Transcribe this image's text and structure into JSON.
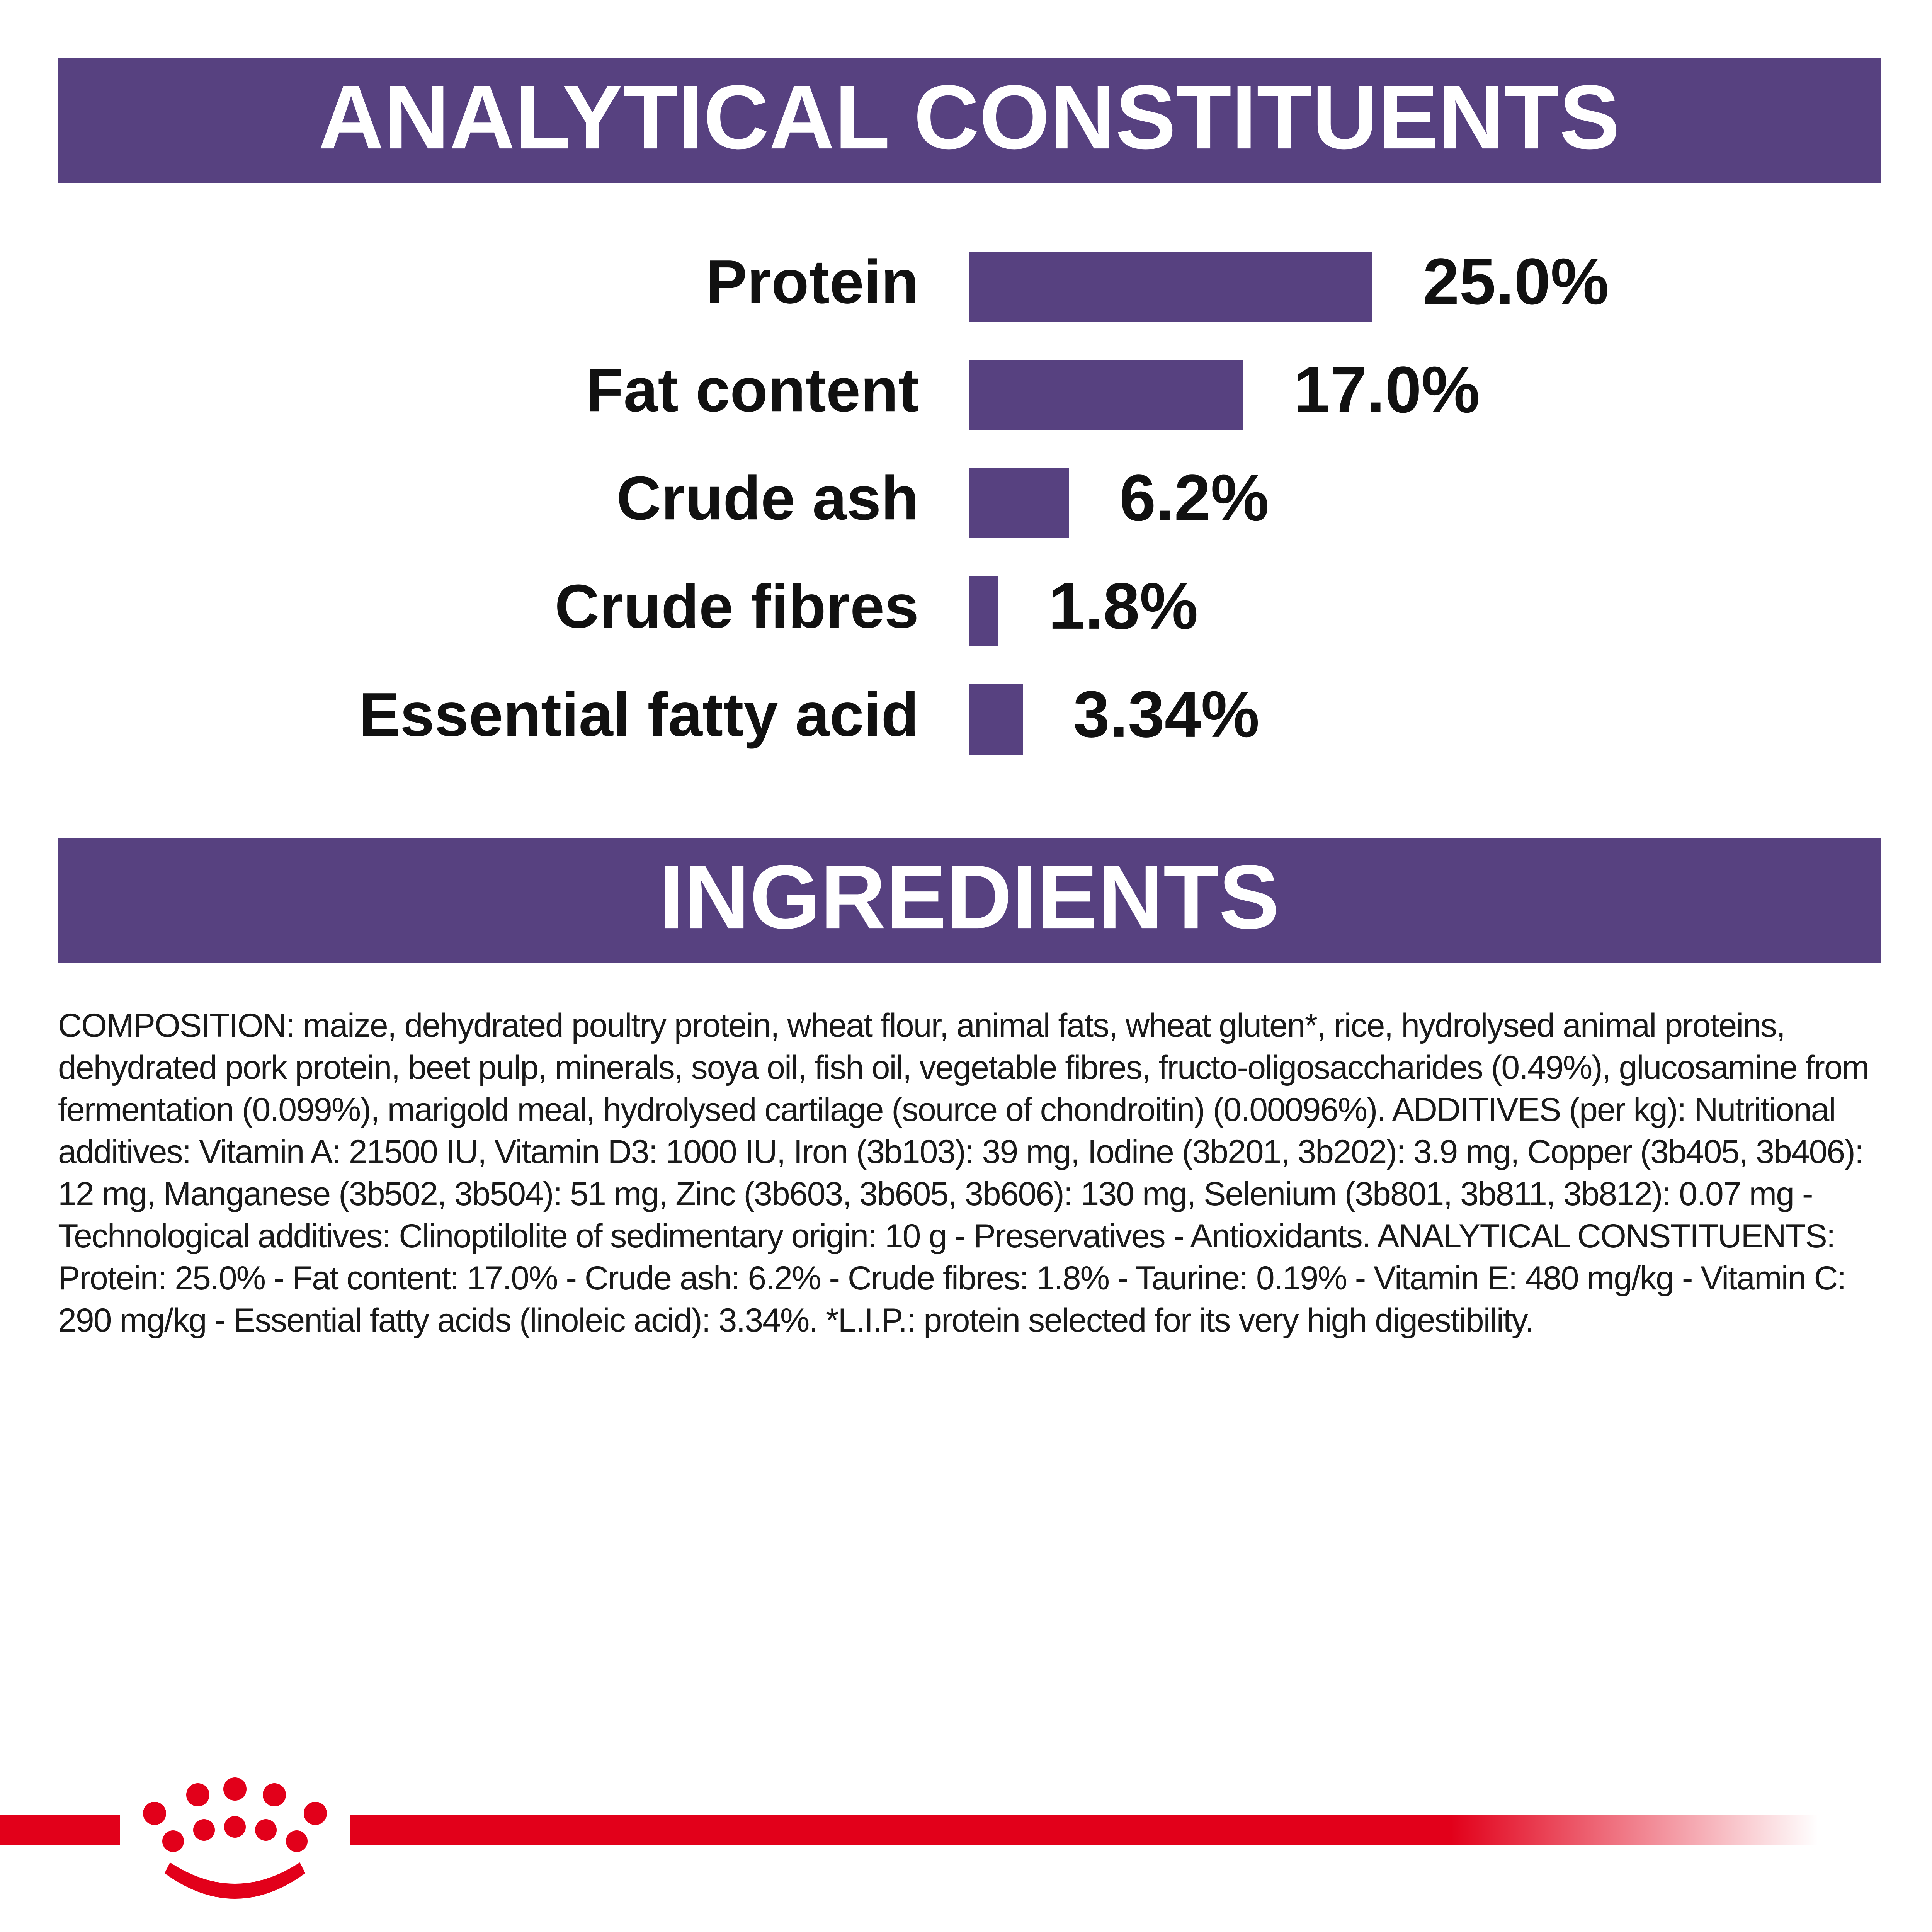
{
  "chart_data": {
    "type": "bar",
    "title": "ANALYTICAL CONSTITUENTS",
    "categories": [
      "Protein",
      "Fat content",
      "Crude ash",
      "Crude fibres",
      "Essential fatty acid"
    ],
    "values": [
      25.0,
      17.0,
      6.2,
      1.8,
      3.34
    ],
    "value_labels": [
      "25.0%",
      "17.0%",
      "6.2%",
      "1.8%",
      "3.34%"
    ],
    "color": "#574180"
  },
  "ingredients": {
    "title": "INGREDIENTS",
    "text": "COMPOSITION: maize, dehydrated poultry protein, wheat flour, animal fats, wheat gluten*, rice, hydrolysed animal proteins, dehydrated pork protein, beet pulp, minerals, soya oil, fish oil, vegetable fibres, fructo-oligosaccharides (0.49%), glucosamine from fermentation (0.099%), marigold meal, hydrolysed cartilage (source of chondroitin) (0.00096%). ADDITIVES (per kg): Nutritional additives: Vitamin A: 21500 IU, Vitamin D3: 1000 IU, Iron (3b103): 39 mg, Iodine (3b201, 3b202): 3.9 mg, Copper (3b405, 3b406): 12 mg, Manganese (3b502, 3b504): 51 mg, Zinc (3b603, 3b605, 3b606): 130 mg, Selenium (3b801, 3b811, 3b812): 0.07 mg - Technological additives: Clinoptilolite of sedimentary origin: 10 g - Preservatives - Antioxidants. ANALYTICAL CONSTITUENTS: Protein: 25.0% - Fat content: 17.0% - Crude ash: 6.2% - Crude fibres: 1.8% - Taurine: 0.19% - Vitamin E: 480 mg/kg - Vitamin C: 290 mg/kg - Essential fatty acids (linoleic acid): 3.34%. *L.I.P.: protein selected for its very high digestibility."
  }
}
